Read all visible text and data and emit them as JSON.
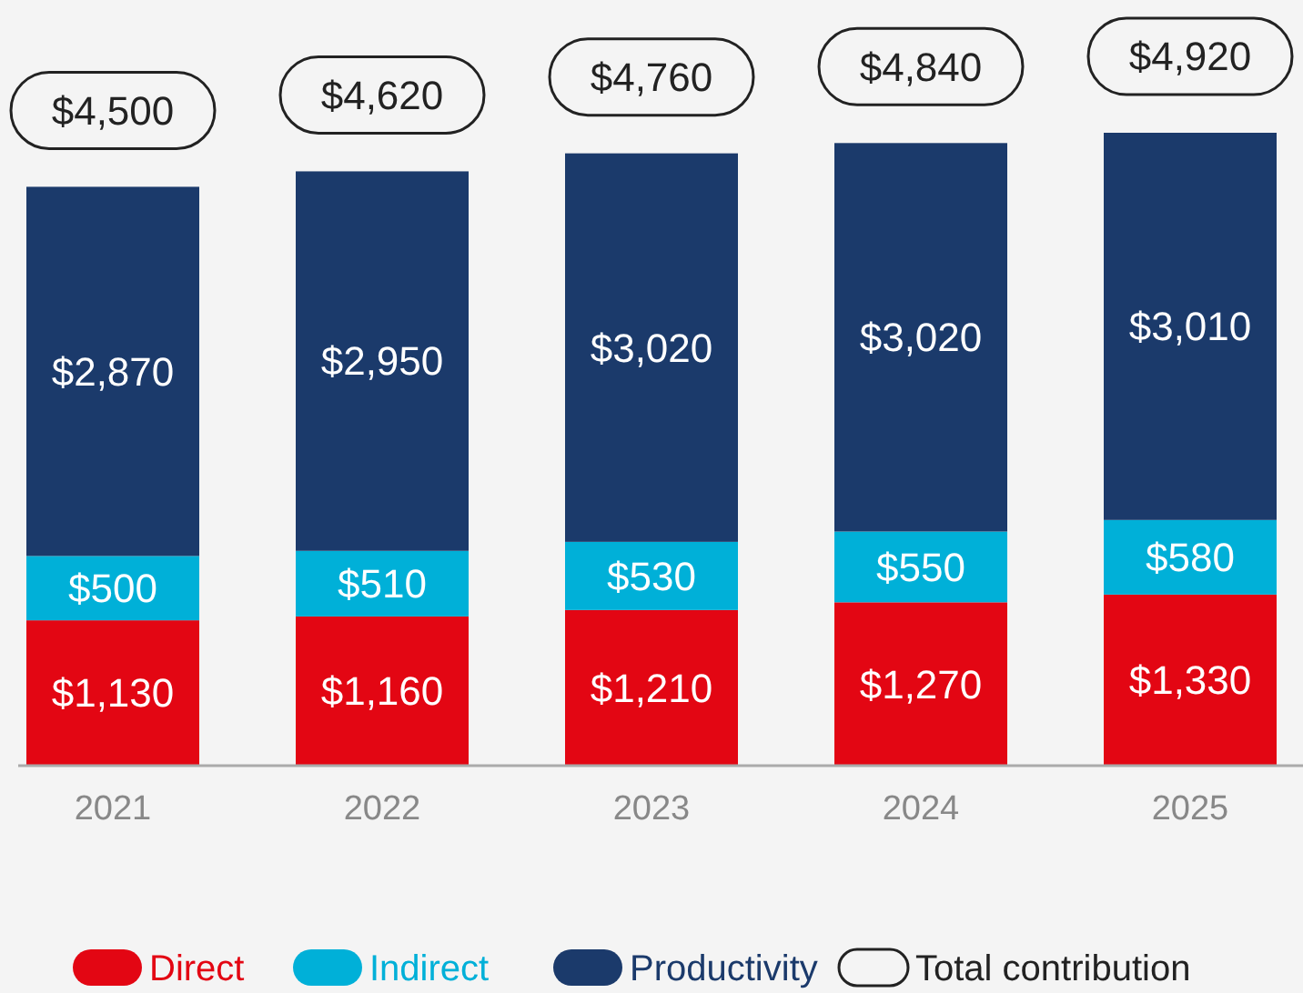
{
  "chart_data": {
    "type": "bar",
    "stacked": true,
    "categories": [
      "2021",
      "2022",
      "2023",
      "2024",
      "2025"
    ],
    "series": [
      {
        "name": "Direct",
        "color": "#e30613",
        "values": [
          1130,
          1160,
          1210,
          1270,
          1330
        ],
        "value_labels": [
          "$1,130",
          "$1,160",
          "$1,210",
          "$1,270",
          "$1,330"
        ]
      },
      {
        "name": "Indirect",
        "color": "#00b0d8",
        "values": [
          500,
          510,
          530,
          550,
          580
        ],
        "value_labels": [
          "$500",
          "$510",
          "$530",
          "$550",
          "$580"
        ]
      },
      {
        "name": "Productivity",
        "color": "#1b3a6b",
        "values": [
          2870,
          2950,
          3020,
          3020,
          3010
        ],
        "value_labels": [
          "$2,870",
          "$2,950",
          "$3,020",
          "$3,020",
          "$3,010"
        ]
      }
    ],
    "totals": [
      "$4,500",
      "$4,620",
      "$4,760",
      "$4,840",
      "$4,920"
    ],
    "annotations": [
      "Total contribution"
    ],
    "legend": "bottom"
  }
}
